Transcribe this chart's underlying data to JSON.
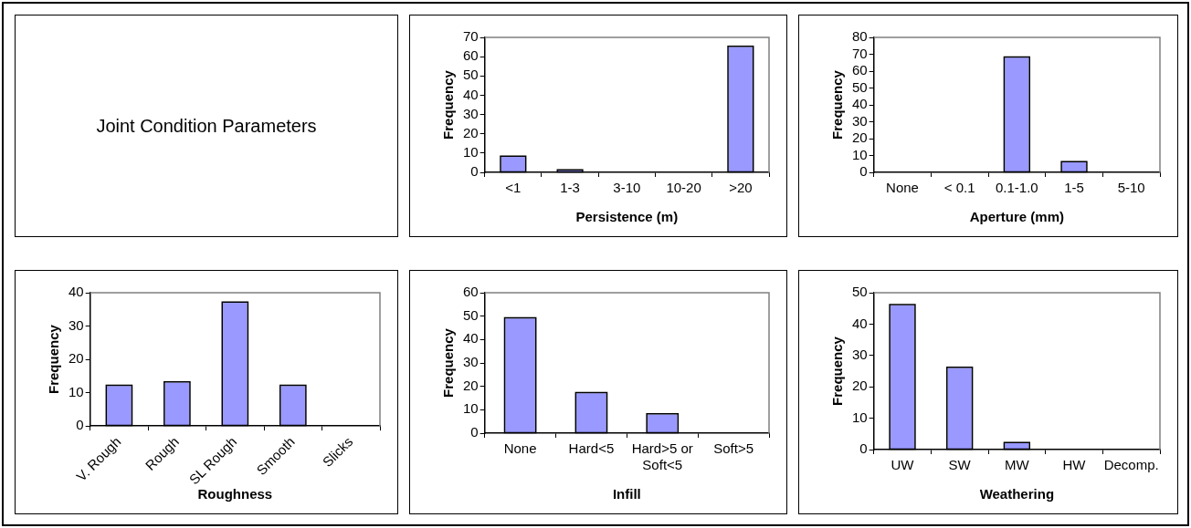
{
  "chart_data": [
    {
      "type": "other",
      "title": "Joint Condition Parameters"
    },
    {
      "type": "bar",
      "xlabel": "Persistence (m)",
      "ylabel": "Frequency",
      "categories": [
        "<1",
        "1-3",
        "3-10",
        "10-20",
        ">20"
      ],
      "values": [
        8,
        1,
        0,
        0,
        65
      ],
      "color": "#9999ff",
      "ylim": [
        0,
        70
      ],
      "yticks": [
        0,
        10,
        20,
        30,
        40,
        50,
        60,
        70
      ],
      "grid": false,
      "legend": false
    },
    {
      "type": "bar",
      "xlabel": "Aperture (mm)",
      "ylabel": "Frequency",
      "categories": [
        "None",
        "< 0.1",
        "0.1-1.0",
        "1-5",
        "5-10"
      ],
      "values": [
        0,
        0,
        68,
        6,
        0
      ],
      "color": "#9999ff",
      "ylim": [
        0,
        80
      ],
      "yticks": [
        0,
        10,
        20,
        30,
        40,
        50,
        60,
        70,
        80
      ],
      "grid": false,
      "legend": false
    },
    {
      "type": "bar",
      "xlabel": "Roughness",
      "ylabel": "Frequency",
      "categories": [
        "V. Rough",
        "Rough",
        "SL Rough",
        "Smooth",
        "Slicks"
      ],
      "values": [
        12,
        13,
        37,
        12,
        0
      ],
      "color": "#9999ff",
      "ylim": [
        0,
        40
      ],
      "yticks": [
        0,
        10,
        20,
        30,
        40
      ],
      "grid": false,
      "legend": false
    },
    {
      "type": "bar",
      "xlabel": "Infill",
      "ylabel": "Frequency",
      "categories": [
        "None",
        "Hard<5",
        "Hard>5 or Soft<5",
        "Soft>5"
      ],
      "values": [
        49,
        17,
        8,
        0
      ],
      "color": "#9999ff",
      "ylim": [
        0,
        60
      ],
      "yticks": [
        0,
        10,
        20,
        30,
        40,
        50,
        60
      ],
      "grid": false,
      "legend": false
    },
    {
      "type": "bar",
      "xlabel": "Weathering",
      "ylabel": "Frequency",
      "categories": [
        "UW",
        "SW",
        "MW",
        "HW",
        "Decomp."
      ],
      "values": [
        46,
        26,
        2,
        0,
        0
      ],
      "color": "#9999ff",
      "ylim": [
        0,
        50
      ],
      "yticks": [
        0,
        10,
        20,
        30,
        40,
        50
      ],
      "grid": false,
      "legend": false
    }
  ]
}
